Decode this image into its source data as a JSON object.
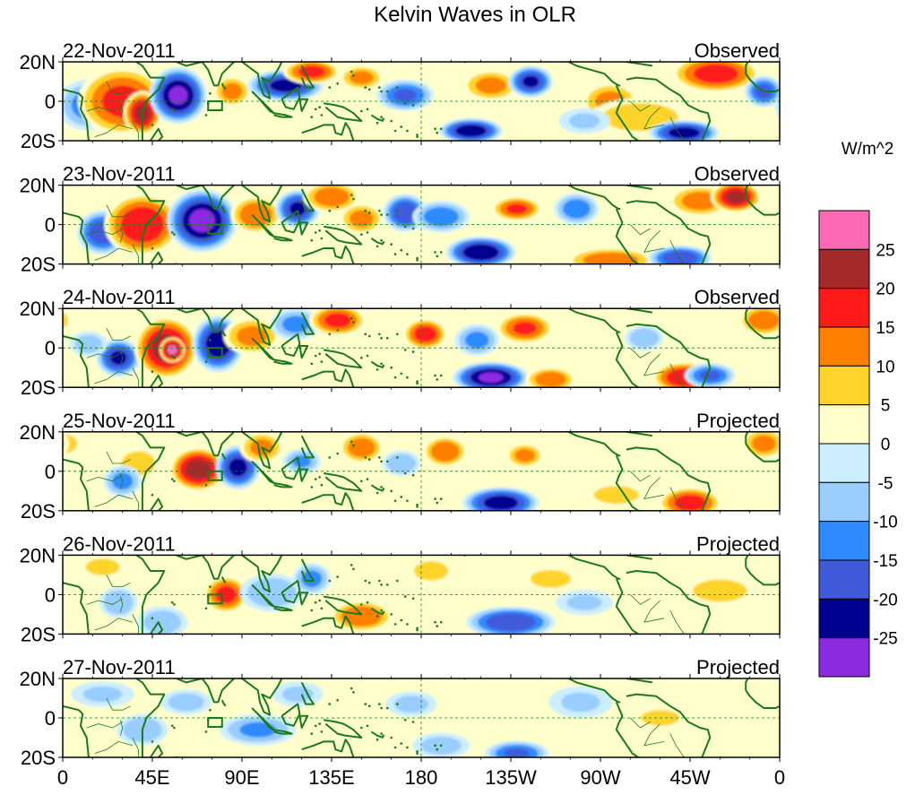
{
  "chart_data": {
    "type": "heatmap",
    "title": "Kelvin Waves in OLR",
    "units_label": "W/m^2",
    "x_tick_labels": [
      "0",
      "45E",
      "90E",
      "135E",
      "180",
      "135W",
      "90W",
      "45W",
      "0"
    ],
    "x_range_deg_east": [
      0,
      360
    ],
    "y_tick_labels": [
      "20N",
      "0",
      "20S"
    ],
    "y_range_deg": [
      -20,
      20
    ],
    "colorbar": {
      "labels": [
        "25",
        "20",
        "15",
        "10",
        "5",
        "0",
        "-5",
        "-10",
        "-15",
        "-20",
        "-25"
      ],
      "colors": [
        "#ff69b4",
        "#a52a2a",
        "#ff1a1a",
        "#ff7f00",
        "#ffd42a",
        "#ffffcc",
        "#cceeff",
        "#99ccff",
        "#2e8bff",
        "#3f5bdc",
        "#000090",
        "#8a2be2"
      ]
    },
    "panels": [
      {
        "date": "22-Nov-2011",
        "status": "Observed",
        "anomalies": [
          {
            "lon": 12,
            "lat": -2,
            "rlon": 9,
            "rlat": 8,
            "v": -12
          },
          {
            "lon": 30,
            "lat": 0,
            "rlon": 14,
            "rlat": 11,
            "v": 17
          },
          {
            "lon": 40,
            "lat": -6,
            "rlon": 6,
            "rlat": 7,
            "v": 22
          },
          {
            "lon": 58,
            "lat": 3,
            "rlon": 9,
            "rlat": 9,
            "v": -26
          },
          {
            "lon": 85,
            "lat": 5,
            "rlon": 6,
            "rlat": 5,
            "v": 12
          },
          {
            "lon": 112,
            "lat": 8,
            "rlon": 12,
            "rlat": 5,
            "v": -22
          },
          {
            "lon": 125,
            "lat": 15,
            "rlon": 9,
            "rlat": 4,
            "v": 17
          },
          {
            "lon": 150,
            "lat": 12,
            "rlon": 7,
            "rlat": 4,
            "v": 12
          },
          {
            "lon": 172,
            "lat": 3,
            "rlon": 9,
            "rlat": 5,
            "v": -16
          },
          {
            "lon": 205,
            "lat": -15,
            "rlon": 10,
            "rlat": 4,
            "v": -24
          },
          {
            "lon": 215,
            "lat": 8,
            "rlon": 9,
            "rlat": 5,
            "v": 12
          },
          {
            "lon": 235,
            "lat": 10,
            "rlon": 7,
            "rlat": 5,
            "v": -21
          },
          {
            "lon": 275,
            "lat": 0,
            "rlon": 9,
            "rlat": 6,
            "v": 12
          },
          {
            "lon": 290,
            "lat": -8,
            "rlon": 16,
            "rlat": 6,
            "v": 9
          },
          {
            "lon": 312,
            "lat": -16,
            "rlon": 11,
            "rlat": 4,
            "v": -23
          },
          {
            "lon": 328,
            "lat": 14,
            "rlon": 14,
            "rlat": 6,
            "v": 18
          },
          {
            "lon": 352,
            "lat": 5,
            "rlon": 6,
            "rlat": 5,
            "v": -17
          },
          {
            "lon": 262,
            "lat": -10,
            "rlon": 8,
            "rlat": 4,
            "v": -6
          }
        ]
      },
      {
        "date": "23-Nov-2011",
        "status": "Observed",
        "anomalies": [
          {
            "lon": 20,
            "lat": -4,
            "rlon": 8,
            "rlat": 7,
            "v": -19
          },
          {
            "lon": 40,
            "lat": 0,
            "rlon": 12,
            "rlat": 10,
            "v": 20
          },
          {
            "lon": 70,
            "lat": 2,
            "rlon": 11,
            "rlat": 10,
            "v": -27
          },
          {
            "lon": 97,
            "lat": 5,
            "rlon": 8,
            "rlat": 6,
            "v": 15
          },
          {
            "lon": 118,
            "lat": 8,
            "rlon": 7,
            "rlat": 6,
            "v": -21
          },
          {
            "lon": 135,
            "lat": 14,
            "rlon": 9,
            "rlat": 5,
            "v": 14
          },
          {
            "lon": 150,
            "lat": 3,
            "rlon": 7,
            "rlat": 5,
            "v": 12
          },
          {
            "lon": 172,
            "lat": 6,
            "rlon": 7,
            "rlat": 6,
            "v": -20
          },
          {
            "lon": 190,
            "lat": 4,
            "rlon": 9,
            "rlat": 5,
            "v": -14
          },
          {
            "lon": 210,
            "lat": -14,
            "rlon": 11,
            "rlat": 5,
            "v": -25
          },
          {
            "lon": 228,
            "lat": 8,
            "rlon": 8,
            "rlat": 4,
            "v": 16
          },
          {
            "lon": 258,
            "lat": 8,
            "rlon": 7,
            "rlat": 5,
            "v": -14
          },
          {
            "lon": 275,
            "lat": -18,
            "rlon": 14,
            "rlat": 4,
            "v": 14
          },
          {
            "lon": 310,
            "lat": -17,
            "rlon": 10,
            "rlat": 4,
            "v": -20
          },
          {
            "lon": 320,
            "lat": 12,
            "rlon": 10,
            "rlat": 5,
            "v": 13
          },
          {
            "lon": 338,
            "lat": 14,
            "rlon": 8,
            "rlat": 5,
            "v": 22
          }
        ]
      },
      {
        "date": "24-Nov-2011",
        "status": "Observed",
        "anomalies": [
          {
            "lon": 28,
            "lat": -5,
            "rlon": 7,
            "rlat": 6,
            "v": -21
          },
          {
            "lon": 13,
            "lat": 2,
            "rlon": 6,
            "rlat": 4,
            "v": -8
          },
          {
            "lon": 52,
            "lat": 0,
            "rlon": 10,
            "rlat": 10,
            "v": 23
          },
          {
            "lon": 55,
            "lat": -1,
            "rlon": 4,
            "rlat": 4,
            "v": 28
          },
          {
            "lon": 78,
            "lat": 2,
            "rlon": 8,
            "rlat": 9,
            "v": -24
          },
          {
            "lon": 95,
            "lat": 6,
            "rlon": 9,
            "rlat": 6,
            "v": 12
          },
          {
            "lon": 117,
            "lat": 12,
            "rlon": 8,
            "rlat": 5,
            "v": -12
          },
          {
            "lon": 138,
            "lat": 14,
            "rlon": 9,
            "rlat": 5,
            "v": 17
          },
          {
            "lon": 182,
            "lat": 7,
            "rlon": 7,
            "rlat": 5,
            "v": 18
          },
          {
            "lon": 208,
            "lat": 4,
            "rlon": 7,
            "rlat": 5,
            "v": -12
          },
          {
            "lon": 215,
            "lat": -15,
            "rlon": 12,
            "rlat": 5,
            "v": -26
          },
          {
            "lon": 232,
            "lat": 10,
            "rlon": 9,
            "rlat": 5,
            "v": 16
          },
          {
            "lon": 245,
            "lat": -16,
            "rlon": 8,
            "rlat": 4,
            "v": 14
          },
          {
            "lon": 292,
            "lat": 5,
            "rlon": 6,
            "rlat": 4,
            "v": -10
          },
          {
            "lon": 312,
            "lat": -15,
            "rlon": 10,
            "rlat": 5,
            "v": 20
          },
          {
            "lon": 325,
            "lat": -14,
            "rlon": 8,
            "rlat": 4,
            "v": -16
          },
          {
            "lon": 352,
            "lat": 14,
            "rlon": 8,
            "rlat": 5,
            "v": 14
          }
        ]
      },
      {
        "date": "25-Nov-2011",
        "status": "Projected",
        "anomalies": [
          {
            "lon": 0,
            "lat": 14,
            "rlon": 6,
            "rlat": 4,
            "v": 10
          },
          {
            "lon": 38,
            "lat": 4,
            "rlon": 7,
            "rlat": 5,
            "v": 10
          },
          {
            "lon": 30,
            "lat": -5,
            "rlon": 6,
            "rlat": 5,
            "v": -12
          },
          {
            "lon": 68,
            "lat": 1,
            "rlon": 9,
            "rlat": 7,
            "v": 23
          },
          {
            "lon": 88,
            "lat": 2,
            "rlon": 7,
            "rlat": 7,
            "v": -22
          },
          {
            "lon": 100,
            "lat": 12,
            "rlon": 7,
            "rlat": 5,
            "v": 12
          },
          {
            "lon": 120,
            "lat": 5,
            "rlon": 6,
            "rlat": 4,
            "v": -11
          },
          {
            "lon": 150,
            "lat": 12,
            "rlon": 7,
            "rlat": 5,
            "v": 14
          },
          {
            "lon": 170,
            "lat": 4,
            "rlon": 6,
            "rlat": 4,
            "v": -10
          },
          {
            "lon": 192,
            "lat": 10,
            "rlon": 7,
            "rlat": 5,
            "v": 15
          },
          {
            "lon": 232,
            "lat": 8,
            "rlon": 6,
            "rlat": 4,
            "v": 12
          },
          {
            "lon": 220,
            "lat": -16,
            "rlon": 12,
            "rlat": 5,
            "v": -23
          },
          {
            "lon": 315,
            "lat": -16,
            "rlon": 10,
            "rlat": 5,
            "v": 18
          },
          {
            "lon": 278,
            "lat": -12,
            "rlon": 10,
            "rlat": 4,
            "v": 8
          },
          {
            "lon": 352,
            "lat": 14,
            "rlon": 7,
            "rlat": 5,
            "v": 12
          }
        ]
      },
      {
        "date": "26-Nov-2011",
        "status": "Projected",
        "anomalies": [
          {
            "lon": 20,
            "lat": 14,
            "rlon": 8,
            "rlat": 4,
            "v": 7
          },
          {
            "lon": 28,
            "lat": -4,
            "rlon": 6,
            "rlat": 5,
            "v": -10
          },
          {
            "lon": 50,
            "lat": -14,
            "rlon": 8,
            "rlat": 5,
            "v": -9
          },
          {
            "lon": 82,
            "lat": 0,
            "rlon": 7,
            "rlat": 6,
            "v": 17
          },
          {
            "lon": 105,
            "lat": 1,
            "rlon": 10,
            "rlat": 6,
            "v": -10
          },
          {
            "lon": 125,
            "lat": 8,
            "rlon": 6,
            "rlat": 5,
            "v": -12
          },
          {
            "lon": 150,
            "lat": -11,
            "rlon": 10,
            "rlat": 5,
            "v": 15
          },
          {
            "lon": 185,
            "lat": 12,
            "rlon": 7,
            "rlat": 4,
            "v": 10
          },
          {
            "lon": 225,
            "lat": -14,
            "rlon": 14,
            "rlat": 5,
            "v": -20
          },
          {
            "lon": 245,
            "lat": 8,
            "rlon": 9,
            "rlat": 4,
            "v": 8
          },
          {
            "lon": 262,
            "lat": -4,
            "rlon": 9,
            "rlat": 4,
            "v": -6
          },
          {
            "lon": 330,
            "lat": 2,
            "rlon": 12,
            "rlat": 5,
            "v": 8
          }
        ]
      },
      {
        "date": "27-Nov-2011",
        "status": "Projected",
        "anomalies": [
          {
            "lon": 20,
            "lat": 12,
            "rlon": 10,
            "rlat": 4,
            "v": -6
          },
          {
            "lon": 40,
            "lat": -6,
            "rlon": 8,
            "rlat": 5,
            "v": -10
          },
          {
            "lon": 62,
            "lat": 8,
            "rlon": 8,
            "rlat": 4,
            "v": -8
          },
          {
            "lon": 98,
            "lat": -6,
            "rlon": 12,
            "rlat": 5,
            "v": -11
          },
          {
            "lon": 118,
            "lat": 12,
            "rlon": 8,
            "rlat": 4,
            "v": -6
          },
          {
            "lon": 175,
            "lat": 7,
            "rlon": 8,
            "rlat": 4,
            "v": -7
          },
          {
            "lon": 190,
            "lat": -14,
            "rlon": 9,
            "rlat": 4,
            "v": -8
          },
          {
            "lon": 228,
            "lat": -18,
            "rlon": 10,
            "rlat": 4,
            "v": -16
          },
          {
            "lon": 260,
            "lat": 8,
            "rlon": 10,
            "rlat": 5,
            "v": -6
          },
          {
            "lon": 300,
            "lat": 0,
            "rlon": 10,
            "rlat": 4,
            "v": 6
          }
        ]
      }
    ]
  }
}
